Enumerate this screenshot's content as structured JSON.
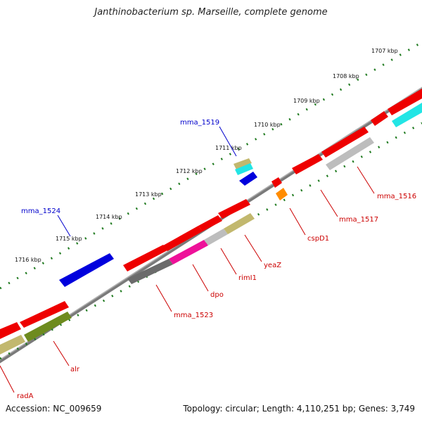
{
  "title": "Janthinobacterium sp. Marseille, complete genome",
  "footer": {
    "accession": "Accession: NC_009659",
    "topology": "Topology: circular; Length: 4,110,251 bp; Genes: 3,749"
  },
  "ticks": [
    "1707 kbp",
    "1708 kbp",
    "1709 kbp",
    "1710 kbp",
    "1711 kbp",
    "1712 kbp",
    "1713 kbp",
    "1714 kbp",
    "1715 kbp",
    "1716 kbp"
  ],
  "labels": [
    {
      "text": "mma_1519",
      "color": "#0000cc"
    },
    {
      "text": "mma_1524",
      "color": "#0000cc"
    },
    {
      "text": "mma_1516",
      "color": "#cc0000"
    },
    {
      "text": "mma_1517",
      "color": "#cc0000"
    },
    {
      "text": "cspD1",
      "color": "#cc0000"
    },
    {
      "text": "yeaZ",
      "color": "#cc0000"
    },
    {
      "text": "rimI1",
      "color": "#cc0000"
    },
    {
      "text": "dpo",
      "color": "#cc0000"
    },
    {
      "text": "mma_1523",
      "color": "#cc0000"
    },
    {
      "text": "alr",
      "color": "#cc0000"
    },
    {
      "text": "radA",
      "color": "#cc0000"
    }
  ],
  "colors": {
    "backbone": "#7a7a7a",
    "tick": "#1f7a1f",
    "red": "#ee0000",
    "blue": "#0000dd",
    "grey": "#6b6b6b",
    "lightgrey": "#bdbdbd",
    "pink": "#ee1199",
    "olive": "#6e8b1e",
    "khaki": "#c2b86e",
    "cyan": "#22e5e5",
    "orange": "#ff8c00"
  }
}
